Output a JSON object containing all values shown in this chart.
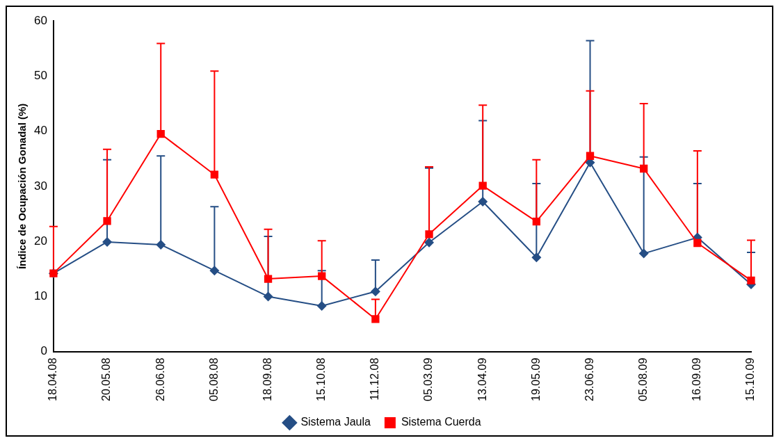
{
  "chart_data": {
    "type": "line",
    "ylabel": "Índice de Ocupación Gonadal (%)",
    "categories": [
      "18.04.08",
      "20.05.08",
      "26.06.08",
      "05.08.08",
      "18.09.08",
      "15.10.08",
      "11.12.08",
      "05.03.09",
      "13.04.09",
      "19.05.09",
      "23.06.09",
      "05.08.09",
      "16.09.09",
      "15.10.09"
    ],
    "series": [
      {
        "name": "Sistema Jaula",
        "color": "#254e85",
        "marker": "diamond",
        "values": [
          14.2,
          19.9,
          19.4,
          14.7,
          10.0,
          8.3,
          10.9,
          19.8,
          27.2,
          17.1,
          34.3,
          17.8,
          20.7,
          12.2
        ],
        "errors": [
          null,
          [
            19.9,
            34.8
          ],
          [
            19.4,
            35.5
          ],
          [
            14.7,
            26.3
          ],
          [
            10.0,
            20.9
          ],
          [
            8.3,
            14.7
          ],
          [
            10.9,
            16.6
          ],
          [
            19.8,
            33.3
          ],
          [
            27.2,
            41.9
          ],
          [
            17.1,
            30.5
          ],
          [
            34.3,
            56.4
          ],
          [
            17.8,
            35.3
          ],
          [
            20.7,
            30.5
          ],
          [
            12.2,
            18.0
          ]
        ]
      },
      {
        "name": "Sistema Cuerda",
        "color": "#ff0000",
        "marker": "square",
        "values": [
          14.2,
          23.7,
          39.5,
          32.1,
          13.2,
          13.7,
          5.9,
          21.3,
          30.1,
          23.6,
          35.5,
          33.2,
          19.7,
          12.9
        ],
        "errors": [
          [
            14.2,
            22.7
          ],
          [
            23.7,
            36.7
          ],
          [
            39.5,
            55.9
          ],
          [
            32.1,
            50.9
          ],
          [
            13.2,
            22.2
          ],
          [
            13.7,
            20.1
          ],
          [
            5.9,
            9.5
          ],
          [
            21.3,
            33.5
          ],
          [
            30.1,
            44.7
          ],
          [
            23.6,
            34.8
          ],
          [
            35.5,
            47.3
          ],
          [
            33.2,
            45.0
          ],
          [
            19.7,
            36.4
          ],
          [
            12.9,
            20.2
          ]
        ]
      }
    ],
    "ylim": [
      0,
      60
    ],
    "yticks": [
      0,
      10,
      20,
      30,
      40,
      50,
      60
    ],
    "grid": false,
    "legend": "bottom",
    "line_style": "solid"
  }
}
